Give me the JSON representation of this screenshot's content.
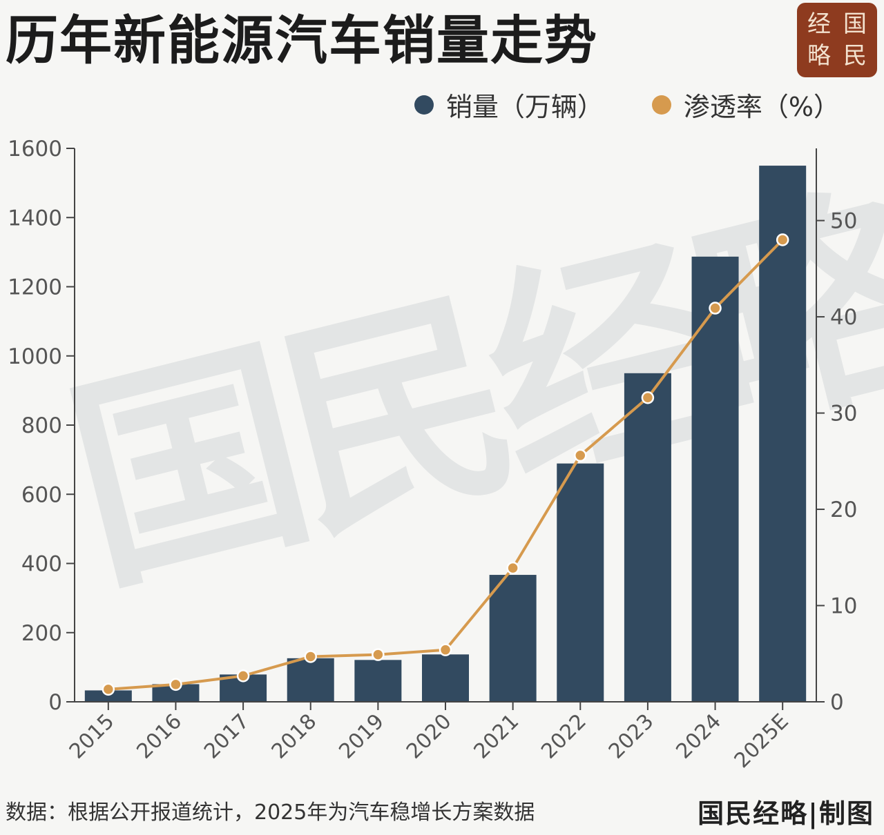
{
  "title": "历年新能源汽车销量走势",
  "seal": {
    "chars": [
      "经",
      "国",
      "略",
      "民"
    ]
  },
  "watermark": "国民经略",
  "legend": {
    "sales": {
      "label": "销量（万辆）",
      "color": "#324a60"
    },
    "penetration": {
      "label": "渗透率（%）",
      "color": "#d69a4e"
    }
  },
  "chart_data": {
    "type": "bar",
    "categories": [
      "2015",
      "2016",
      "2017",
      "2018",
      "2019",
      "2020",
      "2021",
      "2022",
      "2023",
      "2024",
      "2025E"
    ],
    "series": [
      {
        "name": "销量（万辆）",
        "type": "bar",
        "axis": "left",
        "values": [
          33,
          51,
          79,
          126,
          121,
          137,
          367,
          689,
          950,
          1287,
          1550
        ],
        "color": "#324a60"
      },
      {
        "name": "渗透率（%）",
        "type": "line",
        "axis": "right",
        "values": [
          1.3,
          1.8,
          2.7,
          4.7,
          4.9,
          5.4,
          13.9,
          25.6,
          31.6,
          40.9,
          48.0
        ],
        "color": "#d69a4e"
      }
    ],
    "y_left": {
      "lim": [
        0,
        1600
      ],
      "ticks": [
        "0",
        "200",
        "400",
        "600",
        "800",
        "1000",
        "1200",
        "1400",
        "1600"
      ]
    },
    "y_right": {
      "lim": [
        0,
        57.5
      ],
      "ticks": [
        "0",
        "10",
        "20",
        "30",
        "40",
        "50"
      ]
    },
    "grid": false,
    "legend_position": "top-right"
  },
  "footer": {
    "source": "数据：根据公开报道统计，2025年为汽车稳增长方案数据",
    "brand": "国民经略|制图"
  }
}
